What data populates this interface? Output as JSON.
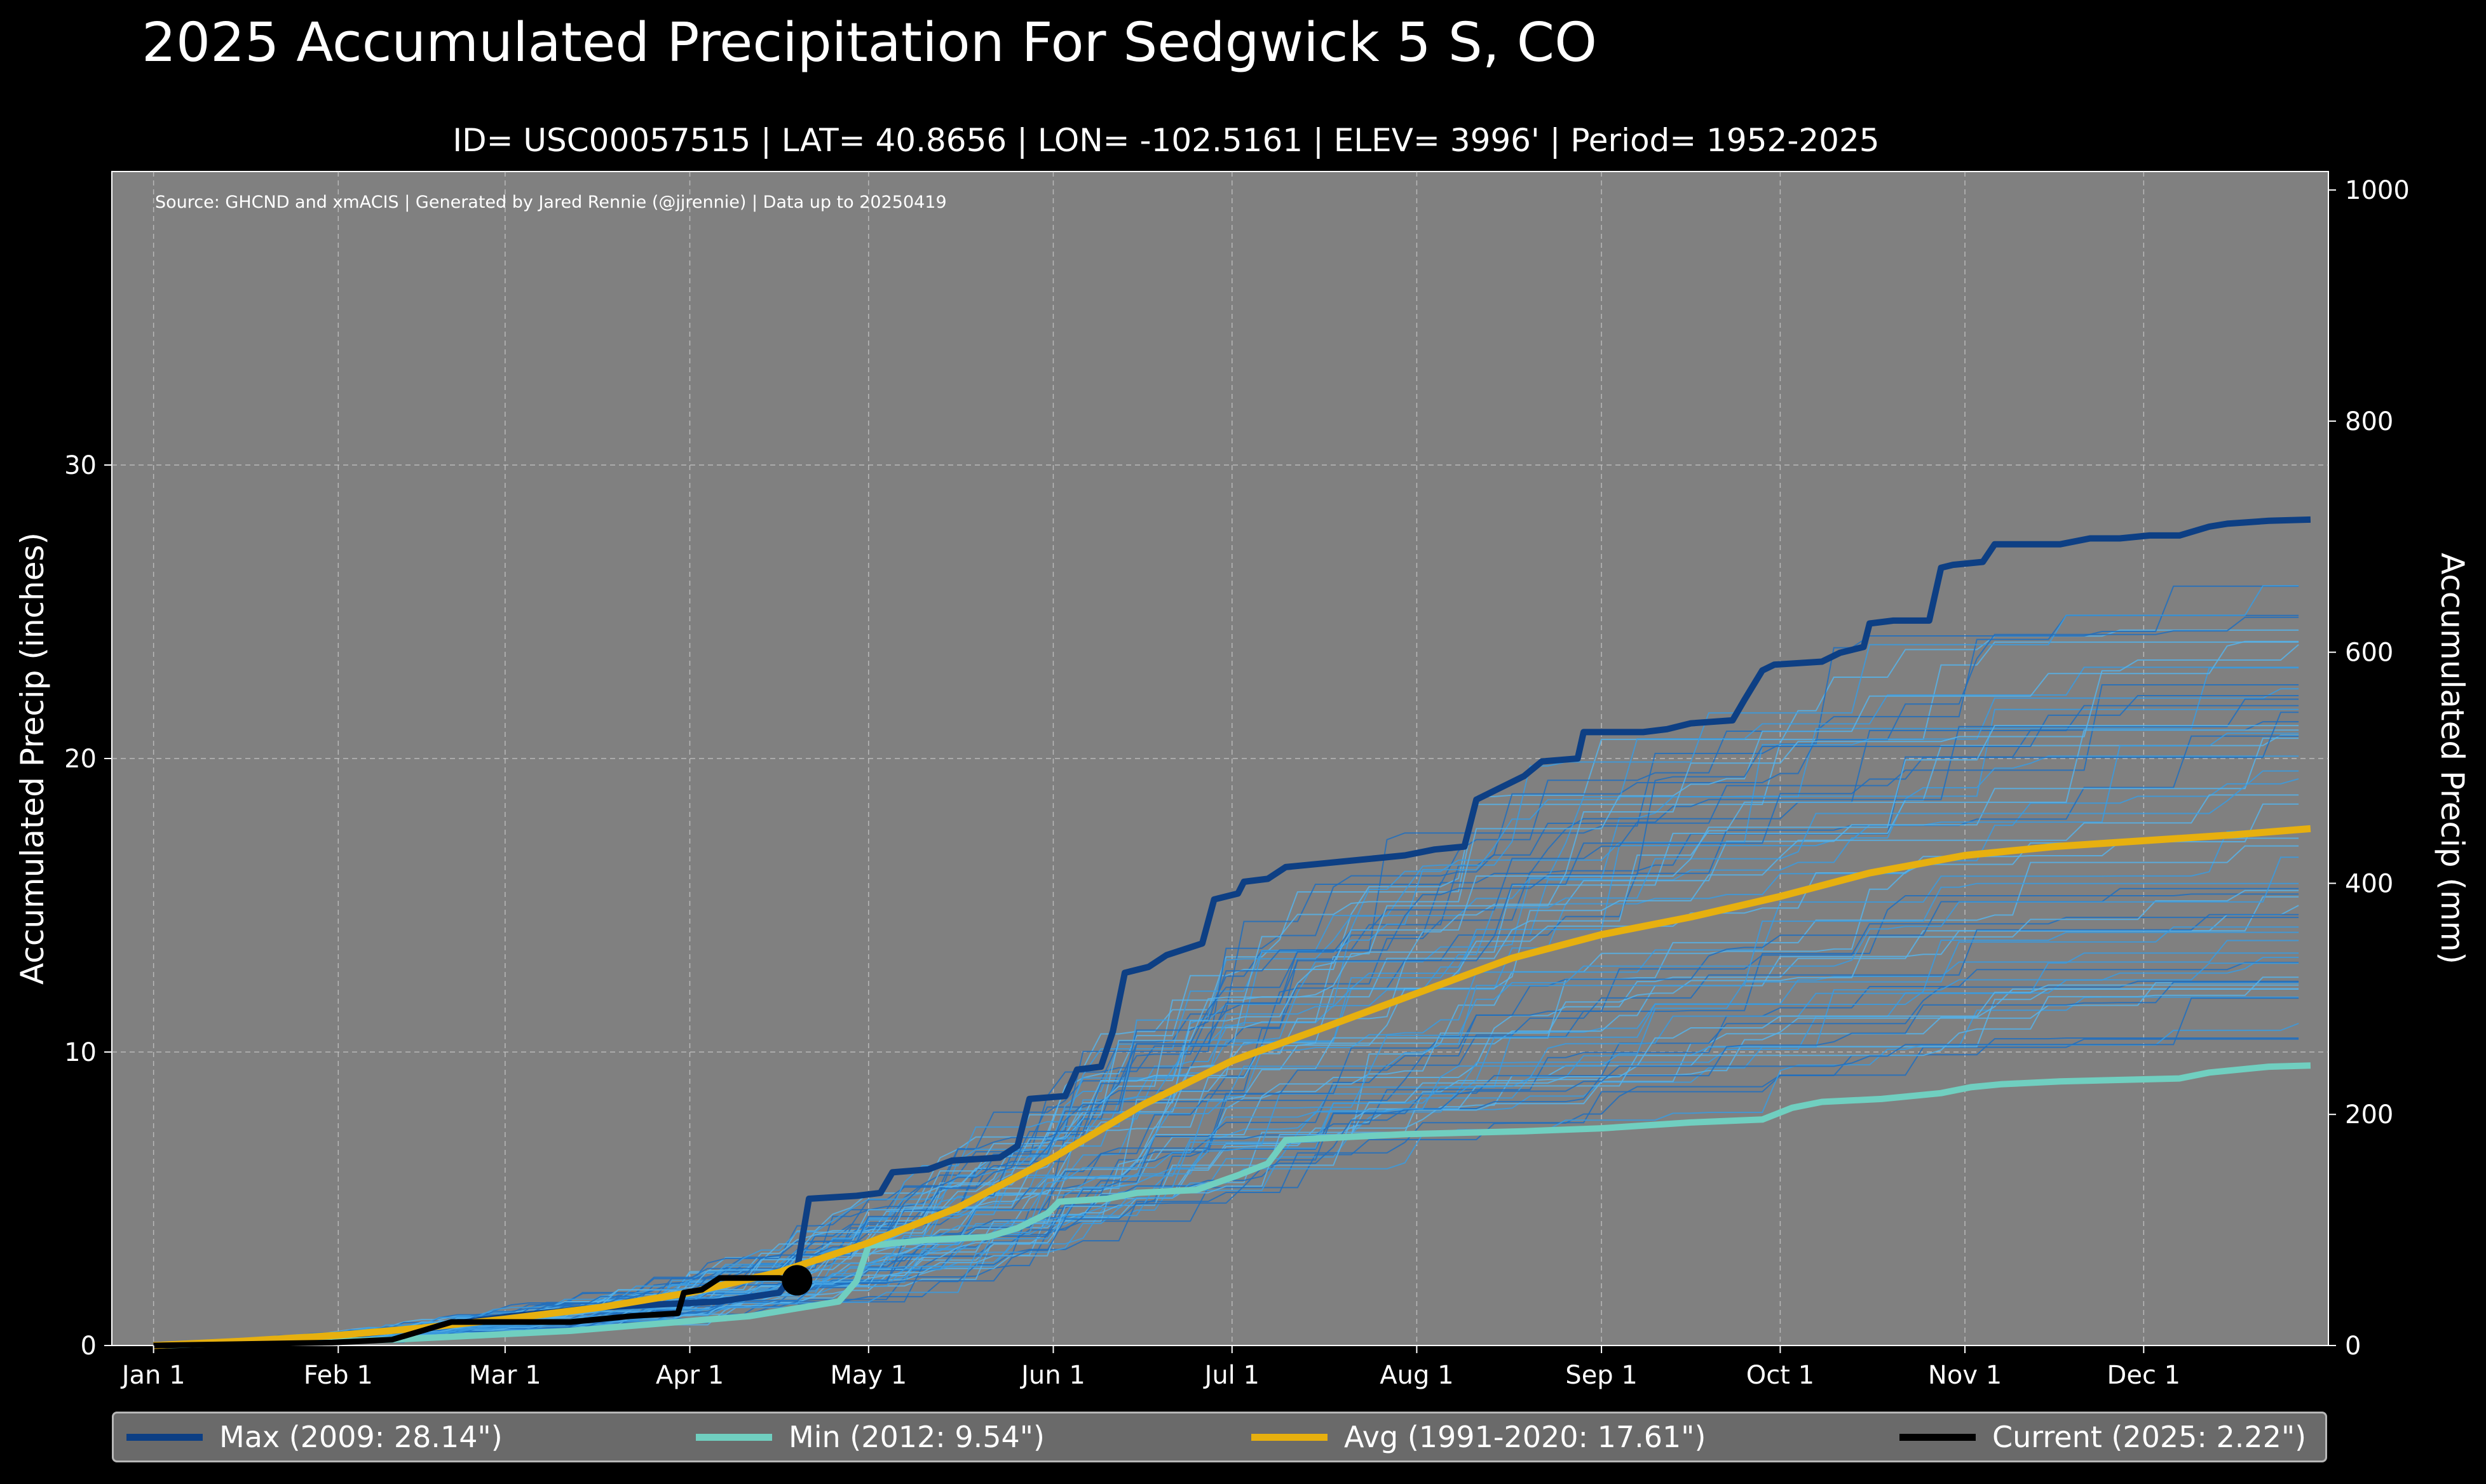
{
  "title": "2025 Accumulated Precipitation For Sedgwick 5 S, CO",
  "subtitle": "ID= USC00057515 | LAT= 40.8656 | LON= -102.5161 | ELEV= 3996' | Period= 1952-2025",
  "source_note": "Source: GHCND and xmACIS | Generated by Jared Rennie (@jjrennie) | Data up to 20250419",
  "legend": {
    "max": "Max (2009:  28.14\")",
    "min": "Min (2012:   9.54\")",
    "avg": "Avg (1991-2020:  17.61\")",
    "current": "Current (2025:   2.22\")"
  },
  "chart_data": {
    "type": "line",
    "title": "2025 Accumulated Precipitation For Sedgwick 5 S, CO",
    "xlabel": "",
    "ylabel": "Accumulated Precip (inches)",
    "ylabel_right": "Accumulated Precip (mm)",
    "xlim": [
      -7,
      365
    ],
    "ylim": [
      0,
      40
    ],
    "ylim_right_mm": [
      0,
      1016
    ],
    "grid": true,
    "x_ticks": [
      {
        "day": 0,
        "label": "Jan 1"
      },
      {
        "day": 31,
        "label": "Feb 1"
      },
      {
        "day": 59,
        "label": "Mar 1"
      },
      {
        "day": 90,
        "label": "Apr 1"
      },
      {
        "day": 120,
        "label": "May 1"
      },
      {
        "day": 151,
        "label": "Jun 1"
      },
      {
        "day": 181,
        "label": "Jul 1"
      },
      {
        "day": 212,
        "label": "Aug 1"
      },
      {
        "day": 243,
        "label": "Sep 1"
      },
      {
        "day": 273,
        "label": "Oct 1"
      },
      {
        "day": 304,
        "label": "Nov 1"
      },
      {
        "day": 334,
        "label": "Dec 1"
      }
    ],
    "y_ticks_left": [
      0,
      10,
      20,
      30
    ],
    "y_ticks_right": [
      0,
      200,
      400,
      600,
      800,
      1000
    ],
    "colors": {
      "max": "#0d3f84",
      "min": "#70cfc0",
      "avg": "#e7b00f",
      "current": "#000000",
      "years": "#3a9be0",
      "plot_bg": "#808080",
      "page_bg": "#000000"
    },
    "series": [
      {
        "name": "Max (2009)",
        "color": "#0d3f84",
        "points": [
          [
            0,
            0
          ],
          [
            15,
            0.1
          ],
          [
            30,
            0.3
          ],
          [
            45,
            0.6
          ],
          [
            60,
            1.0
          ],
          [
            75,
            1.3
          ],
          [
            95,
            1.5
          ],
          [
            105,
            1.8
          ],
          [
            108,
            2.6
          ],
          [
            110,
            5.0
          ],
          [
            118,
            5.1
          ],
          [
            122,
            5.2
          ],
          [
            124,
            5.9
          ],
          [
            130,
            6.0
          ],
          [
            134,
            6.3
          ],
          [
            142,
            6.4
          ],
          [
            145,
            6.8
          ],
          [
            147,
            8.4
          ],
          [
            153,
            8.5
          ],
          [
            155,
            9.4
          ],
          [
            159,
            9.5
          ],
          [
            161,
            10.7
          ],
          [
            163,
            12.7
          ],
          [
            167,
            12.9
          ],
          [
            170,
            13.3
          ],
          [
            176,
            13.7
          ],
          [
            178,
            15.2
          ],
          [
            182,
            15.4
          ],
          [
            183,
            15.8
          ],
          [
            187,
            15.9
          ],
          [
            190,
            16.3
          ],
          [
            195,
            16.4
          ],
          [
            200,
            16.5
          ],
          [
            205,
            16.6
          ],
          [
            210,
            16.7
          ],
          [
            215,
            16.9
          ],
          [
            220,
            17.0
          ],
          [
            222,
            18.6
          ],
          [
            225,
            18.9
          ],
          [
            230,
            19.4
          ],
          [
            233,
            19.9
          ],
          [
            239,
            20.0
          ],
          [
            240,
            20.9
          ],
          [
            250,
            20.9
          ],
          [
            254,
            21.0
          ],
          [
            258,
            21.2
          ],
          [
            265,
            21.3
          ],
          [
            267,
            22.0
          ],
          [
            270,
            23.0
          ],
          [
            272,
            23.2
          ],
          [
            280,
            23.3
          ],
          [
            283,
            23.6
          ],
          [
            287,
            23.8
          ],
          [
            288,
            24.6
          ],
          [
            292,
            24.7
          ],
          [
            298,
            24.7
          ],
          [
            300,
            26.5
          ],
          [
            302,
            26.6
          ],
          [
            307,
            26.7
          ],
          [
            309,
            27.3
          ],
          [
            315,
            27.3
          ],
          [
            320,
            27.3
          ],
          [
            325,
            27.5
          ],
          [
            330,
            27.5
          ],
          [
            335,
            27.6
          ],
          [
            340,
            27.6
          ],
          [
            345,
            27.9
          ],
          [
            348,
            28.0
          ],
          [
            355,
            28.1
          ],
          [
            362,
            28.14
          ]
        ]
      },
      {
        "name": "Min (2012)",
        "color": "#70cfc0",
        "points": [
          [
            0,
            0
          ],
          [
            40,
            0.2
          ],
          [
            70,
            0.5
          ],
          [
            100,
            1.0
          ],
          [
            115,
            1.5
          ],
          [
            118,
            2.2
          ],
          [
            120,
            3.4
          ],
          [
            125,
            3.5
          ],
          [
            130,
            3.6
          ],
          [
            140,
            3.7
          ],
          [
            145,
            4.0
          ],
          [
            150,
            4.5
          ],
          [
            152,
            4.9
          ],
          [
            160,
            5.0
          ],
          [
            165,
            5.2
          ],
          [
            175,
            5.3
          ],
          [
            182,
            5.8
          ],
          [
            187,
            6.2
          ],
          [
            190,
            7.0
          ],
          [
            200,
            7.1
          ],
          [
            210,
            7.2
          ],
          [
            230,
            7.3
          ],
          [
            243,
            7.4
          ],
          [
            258,
            7.6
          ],
          [
            270,
            7.7
          ],
          [
            275,
            8.1
          ],
          [
            280,
            8.3
          ],
          [
            290,
            8.4
          ],
          [
            300,
            8.6
          ],
          [
            305,
            8.8
          ],
          [
            310,
            8.9
          ],
          [
            320,
            9.0
          ],
          [
            340,
            9.1
          ],
          [
            345,
            9.3
          ],
          [
            350,
            9.4
          ],
          [
            355,
            9.5
          ],
          [
            362,
            9.54
          ]
        ]
      },
      {
        "name": "Avg (1991-2020)",
        "color": "#e7b00f",
        "points": [
          [
            0,
            0
          ],
          [
            15,
            0.15
          ],
          [
            31,
            0.35
          ],
          [
            45,
            0.6
          ],
          [
            59,
            0.9
          ],
          [
            75,
            1.3
          ],
          [
            90,
            1.8
          ],
          [
            105,
            2.5
          ],
          [
            120,
            3.5
          ],
          [
            135,
            4.7
          ],
          [
            151,
            6.4
          ],
          [
            166,
            8.2
          ],
          [
            181,
            9.7
          ],
          [
            196,
            10.8
          ],
          [
            212,
            12.0
          ],
          [
            228,
            13.2
          ],
          [
            243,
            14.0
          ],
          [
            258,
            14.6
          ],
          [
            273,
            15.3
          ],
          [
            288,
            16.1
          ],
          [
            304,
            16.7
          ],
          [
            319,
            17.0
          ],
          [
            334,
            17.2
          ],
          [
            349,
            17.4
          ],
          [
            362,
            17.61
          ]
        ]
      },
      {
        "name": "Current (2025)",
        "color": "#000000",
        "points": [
          [
            0,
            0
          ],
          [
            30,
            0.1
          ],
          [
            40,
            0.2
          ],
          [
            45,
            0.5
          ],
          [
            50,
            0.8
          ],
          [
            60,
            0.8
          ],
          [
            70,
            0.8
          ],
          [
            75,
            0.9
          ],
          [
            80,
            1.0
          ],
          [
            88,
            1.1
          ],
          [
            89,
            1.8
          ],
          [
            92,
            1.9
          ],
          [
            95,
            2.3
          ],
          [
            105,
            2.3
          ],
          [
            108,
            2.22
          ]
        ]
      }
    ],
    "current_last_point": {
      "day": 108,
      "value": 2.22
    }
  }
}
